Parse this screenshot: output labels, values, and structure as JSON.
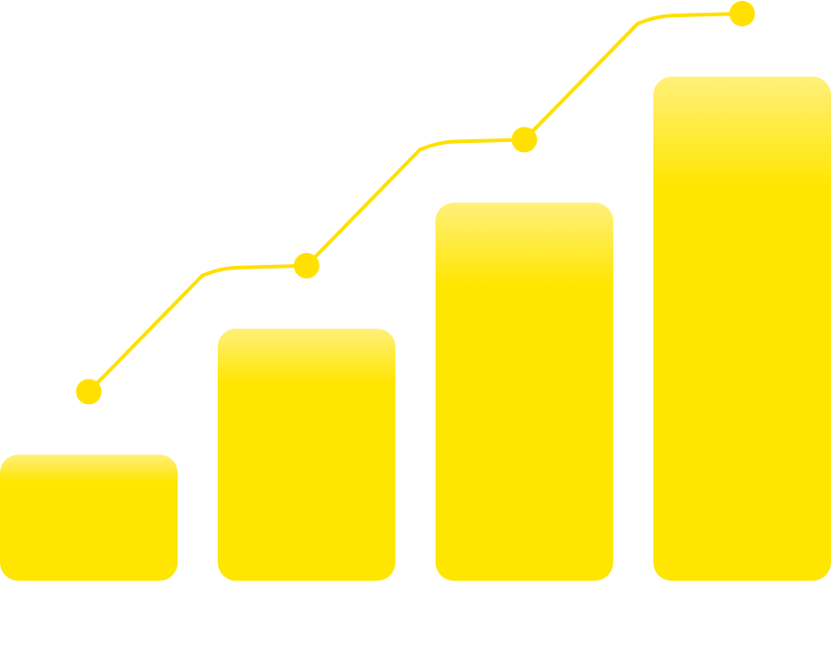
{
  "chart_data": {
    "type": "bar",
    "categories": [
      "",
      "",
      "",
      ""
    ],
    "values": [
      1,
      2,
      3,
      4
    ],
    "series": [
      {
        "type": "bar",
        "values": [
          1,
          2,
          3,
          4
        ]
      },
      {
        "type": "line",
        "values": [
          1.5,
          2.5,
          3.5,
          4.5
        ]
      }
    ],
    "title": "",
    "xlabel": "",
    "ylabel": "",
    "ylim": [
      0,
      4.5
    ],
    "grid": false,
    "legend": "none",
    "colors": {
      "bar_top": "#FFF07A",
      "bar": "#FFE600",
      "line": "#FFE000",
      "marker": "#FFE000"
    }
  }
}
